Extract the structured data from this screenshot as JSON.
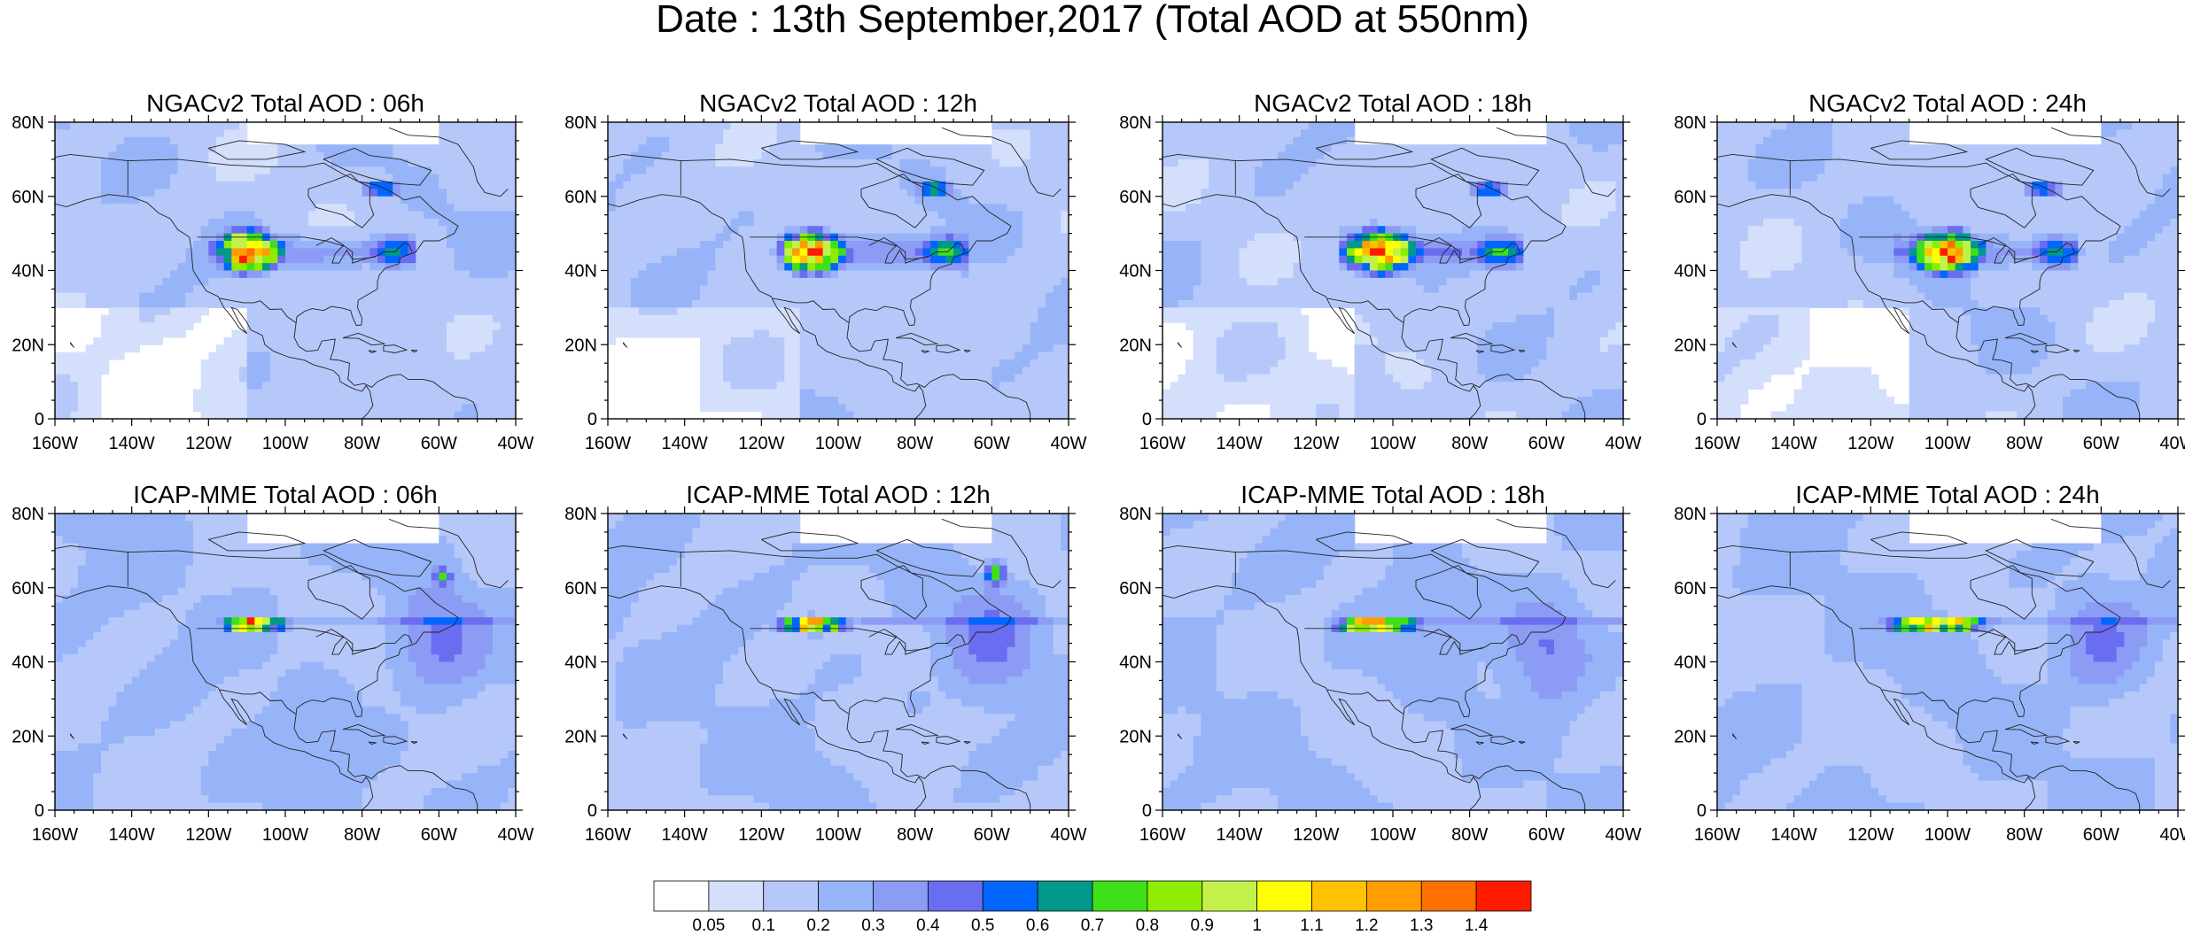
{
  "figure": {
    "title": "Date : 13th September,2017 (Total AOD at 550nm)"
  },
  "panels": [
    {
      "id": "ngac-06h",
      "title": "NGACv2 Total AOD : 06h",
      "model": "ngac",
      "hour": "06h"
    },
    {
      "id": "ngac-12h",
      "title": "NGACv2 Total AOD : 12h",
      "model": "ngac",
      "hour": "12h"
    },
    {
      "id": "ngac-18h",
      "title": "NGACv2 Total AOD : 18h",
      "model": "ngac",
      "hour": "18h"
    },
    {
      "id": "ngac-24h",
      "title": "NGACv2 Total AOD : 24h",
      "model": "ngac",
      "hour": "24h"
    },
    {
      "id": "icap-06h",
      "title": "ICAP-MME Total AOD : 06h",
      "model": "icap",
      "hour": "06h"
    },
    {
      "id": "icap-12h",
      "title": "ICAP-MME Total AOD : 12h",
      "model": "icap",
      "hour": "12h"
    },
    {
      "id": "icap-18h",
      "title": "ICAP-MME Total AOD : 18h",
      "model": "icap",
      "hour": "18h"
    },
    {
      "id": "icap-24h",
      "title": "ICAP-MME Total AOD : 24h",
      "model": "icap",
      "hour": "24h"
    }
  ],
  "map_extent": {
    "lon_min": -160,
    "lon_max": -40,
    "lat_min": 0,
    "lat_max": 80
  },
  "axes": {
    "x_ticks": [
      "160W",
      "140W",
      "120W",
      "100W",
      "80W",
      "60W",
      "40W"
    ],
    "y_ticks": [
      "0",
      "20N",
      "40N",
      "60N",
      "80N"
    ]
  },
  "colorbar": {
    "colors": [
      "#ffffff",
      "#d4dffc",
      "#b6c8fa",
      "#97b4f8",
      "#8c9cf5",
      "#6a6df0",
      "#0066ff",
      "#00998a",
      "#3fe01a",
      "#8ced00",
      "#c2f24a",
      "#ffff00",
      "#ffc200",
      "#ff9d00",
      "#ff7000",
      "#ff1a00"
    ],
    "labels": [
      "0.05",
      "0.1",
      "0.2",
      "0.3",
      "0.4",
      "0.5",
      "0.6",
      "0.7",
      "0.8",
      "0.9",
      "1",
      "1.1",
      "1.2",
      "1.3",
      "1.4"
    ]
  }
}
